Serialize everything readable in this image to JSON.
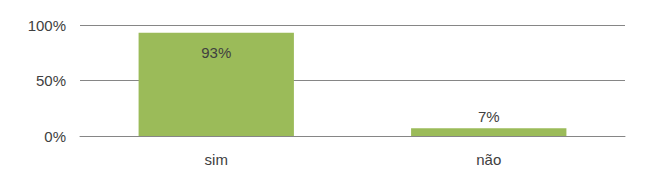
{
  "chart_data": {
    "type": "bar",
    "categories": [
      "sim",
      "não"
    ],
    "values": [
      93,
      7
    ],
    "value_labels": [
      "93%",
      "7%"
    ],
    "color": "#9bbb59",
    "ylim": [
      0,
      100
    ],
    "yticks": [
      {
        "value": 0,
        "label": "0%"
      },
      {
        "value": 50,
        "label": "50%"
      },
      {
        "value": 100,
        "label": "100%"
      }
    ],
    "grid": true,
    "data_labels": true
  }
}
